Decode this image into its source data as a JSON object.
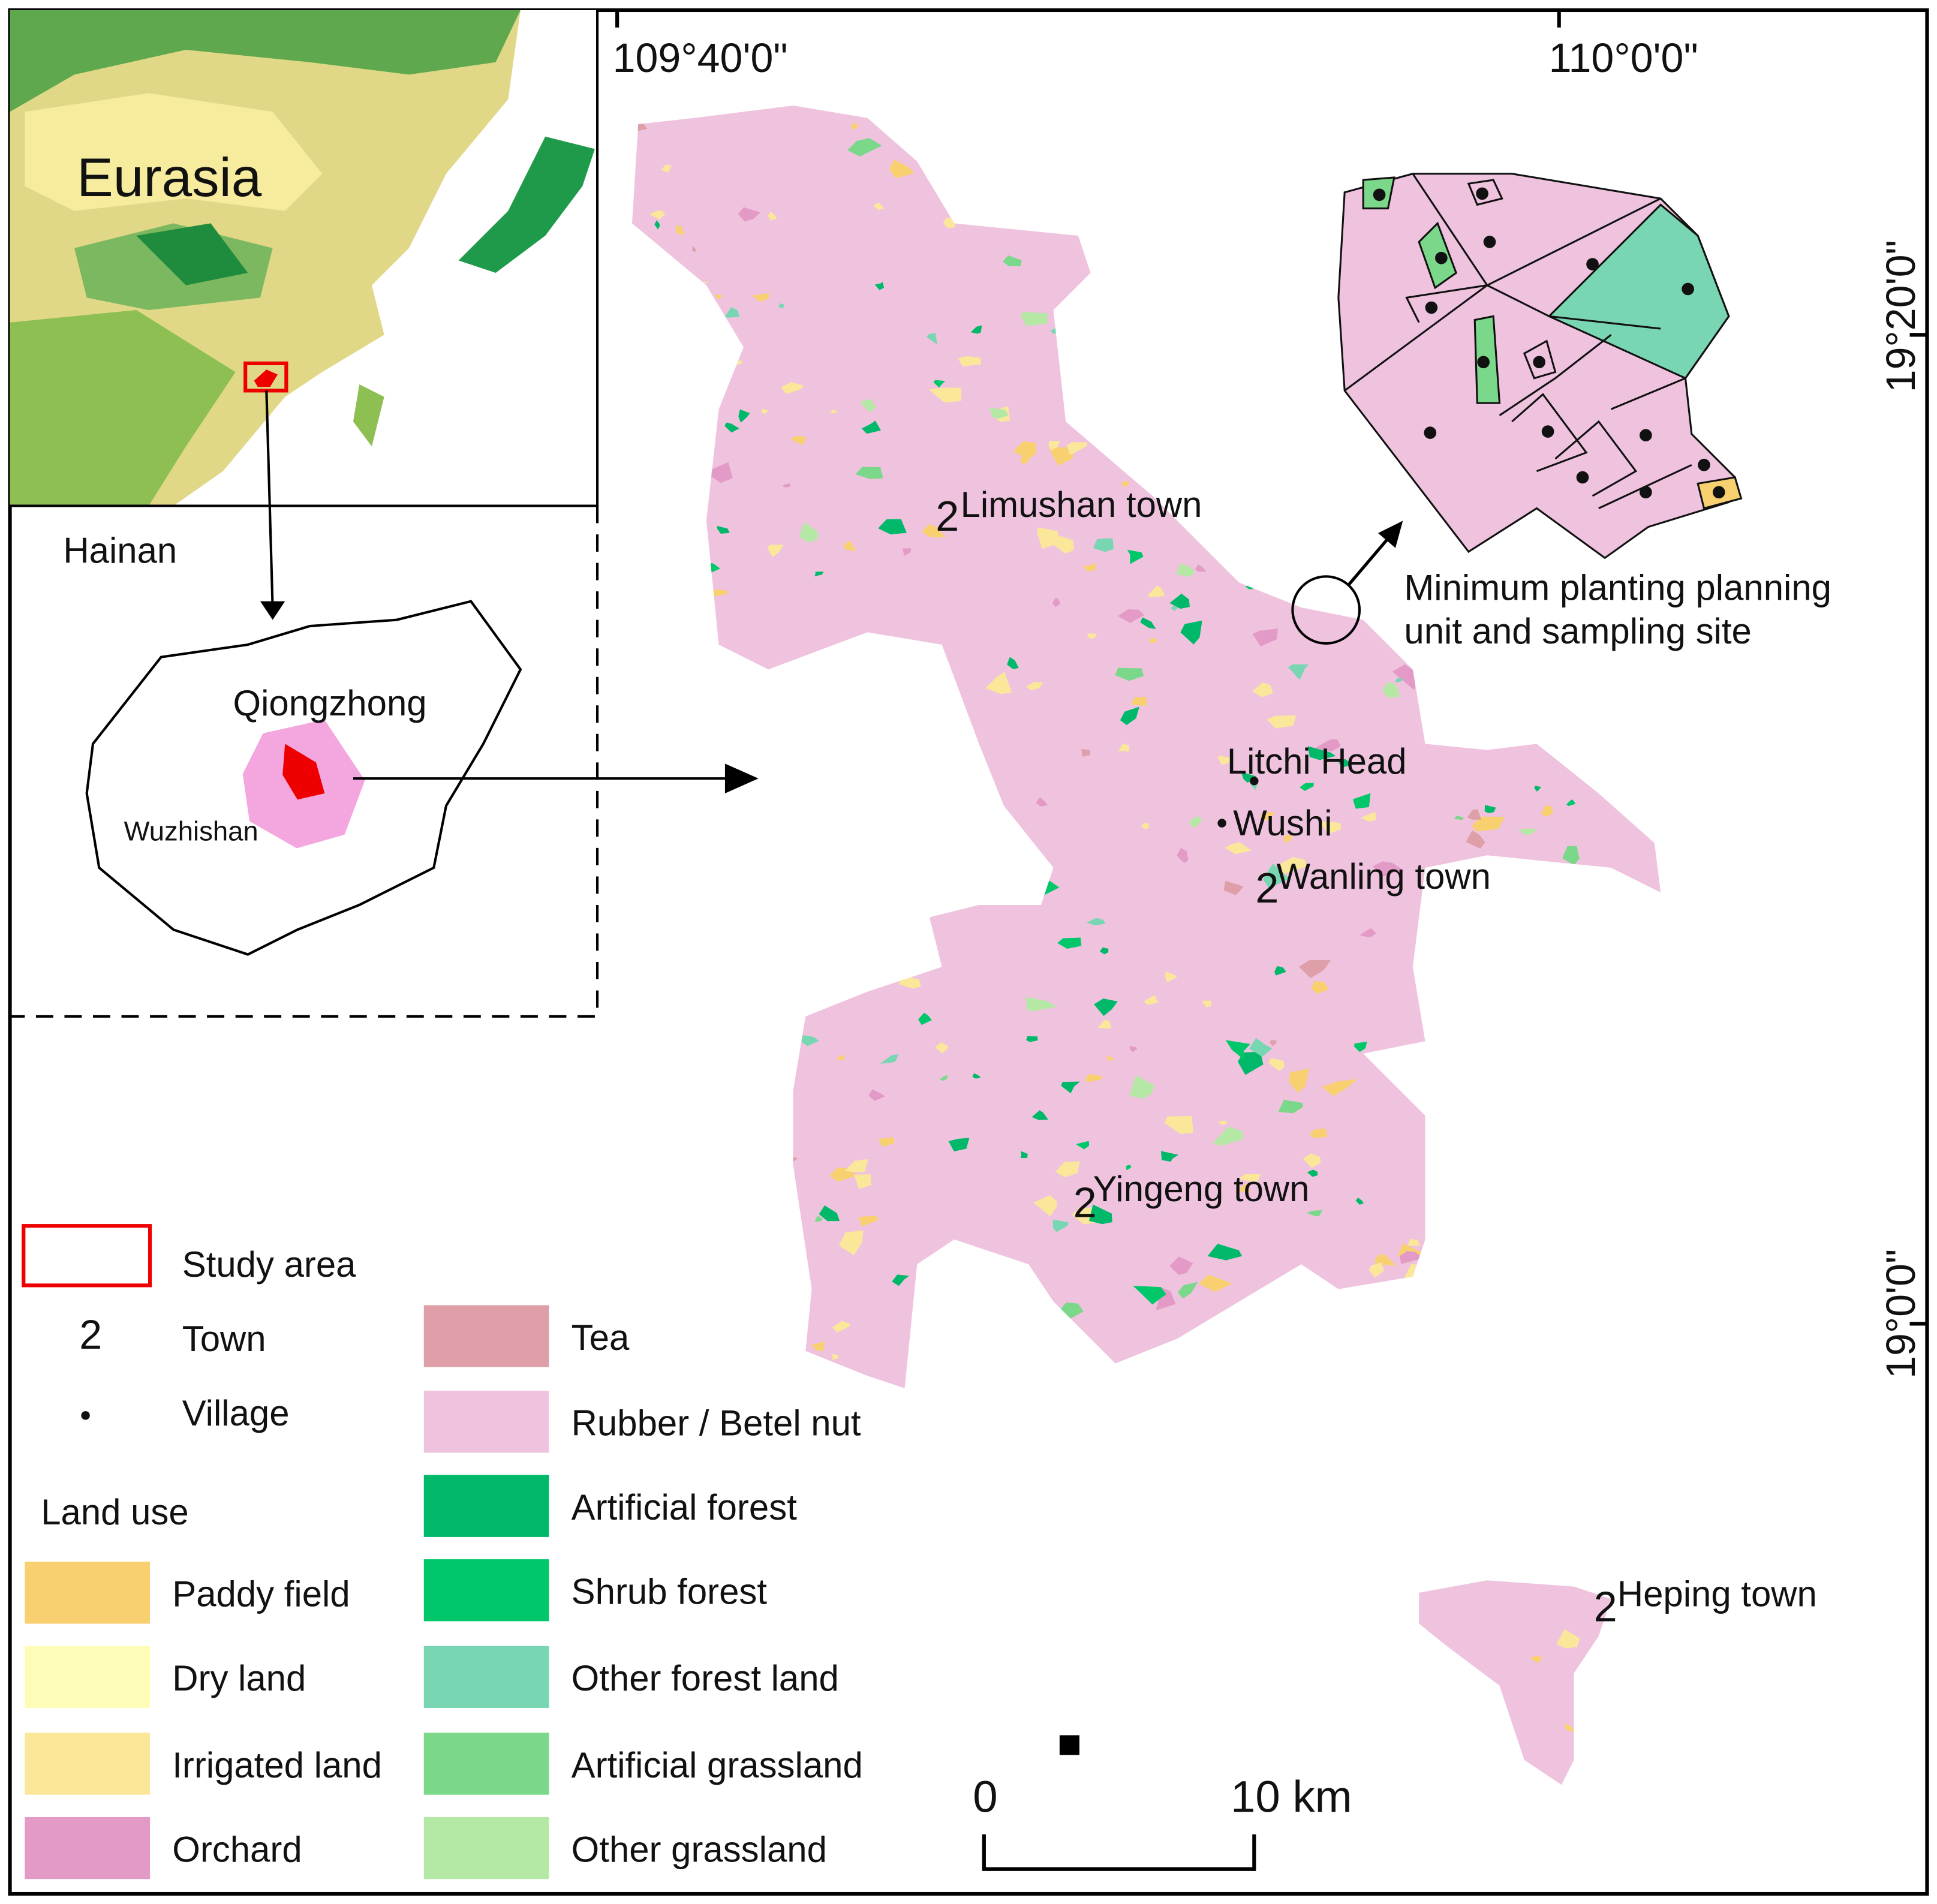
{
  "coordinates": {
    "longitude": [
      "109°40'0\"",
      "110°0'0\""
    ],
    "latitude": [
      "19°20'0\"",
      "19°0'0\""
    ]
  },
  "inset": {
    "continent": "Eurasia",
    "province": "Hainan",
    "county": "Qiongzhong",
    "mountain": "Wuzhishan"
  },
  "towns": [
    "Limushan town",
    "Wanling town",
    "Yingeng town",
    "Heping town"
  ],
  "villages": [
    "Litchi Head",
    "Wushi"
  ],
  "callout": [
    "Minimum planting planning",
    "unit and sampling site"
  ],
  "legend": {
    "study_area": "Study area",
    "town_symbol": "2",
    "town": "Town",
    "village": "Village",
    "land_use_title": "Land use",
    "land_use": [
      {
        "name": "Paddy field",
        "color": "#f8d070"
      },
      {
        "name": "Dry land",
        "color": "#fdfdb8"
      },
      {
        "name": "Irrigated land",
        "color": "#fbe79a"
      },
      {
        "name": "Orchard",
        "color": "#e39ac7"
      },
      {
        "name": "Tea",
        "color": "#de9fa8"
      },
      {
        "name": "Rubber / Betel nut",
        "color": "#efc3de"
      },
      {
        "name": "Artificial forest",
        "color": "#00b86a"
      },
      {
        "name": "Shrub forest",
        "color": "#00c86a"
      },
      {
        "name": "Other forest land",
        "color": "#79d6b3"
      },
      {
        "name": "Artificial grassland",
        "color": "#7bd88a"
      },
      {
        "name": "Other grassland",
        "color": "#b6e8a5"
      }
    ]
  },
  "scale_bar": [
    "0",
    "10 km"
  ]
}
